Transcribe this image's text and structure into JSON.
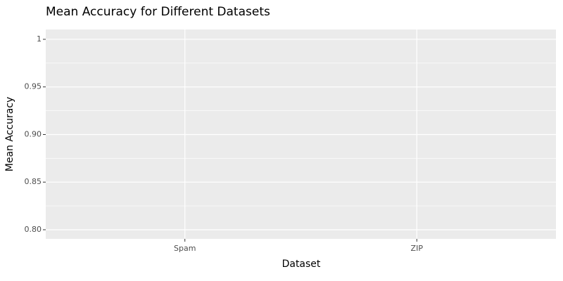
{
  "chart_data": {
    "type": "bar",
    "title": "Mean Accuracy for Different Datasets",
    "x_label": "Dataset",
    "y_label": "Mean Accuracy",
    "categories": [
      "Spam",
      "ZIP"
    ],
    "ylim": [
      0.7904,
      1.0103
    ],
    "yticks": [
      {
        "value": 0.8,
        "label": "0.80"
      },
      0.85,
      {
        "value": 0.9,
        "label": "0.90"
      },
      0.95,
      1
    ],
    "grid": true
  }
}
